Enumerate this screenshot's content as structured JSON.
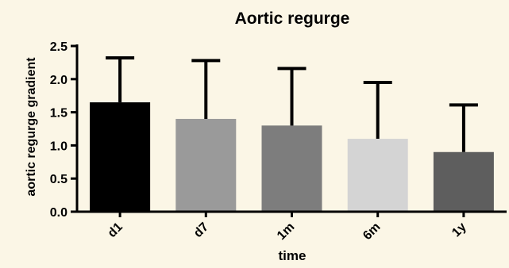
{
  "chart_data": {
    "type": "bar",
    "title": "Aortic regurge",
    "xlabel": "time",
    "ylabel": "aortic regurge gradient",
    "categories": [
      "d1",
      "d7",
      "1m",
      "6m",
      "1y"
    ],
    "values": [
      1.65,
      1.4,
      1.3,
      1.1,
      0.9
    ],
    "error_upper": [
      2.32,
      2.28,
      2.16,
      1.95,
      1.61
    ],
    "colors": [
      "#000000",
      "#9a9a9a",
      "#7d7d7d",
      "#d4d4d4",
      "#5e5e5e"
    ],
    "ylim": [
      0,
      2.5
    ],
    "yticks": [
      "0.0",
      "0.5",
      "1.0",
      "1.5",
      "2.0",
      "2.5"
    ],
    "grid": false
  }
}
